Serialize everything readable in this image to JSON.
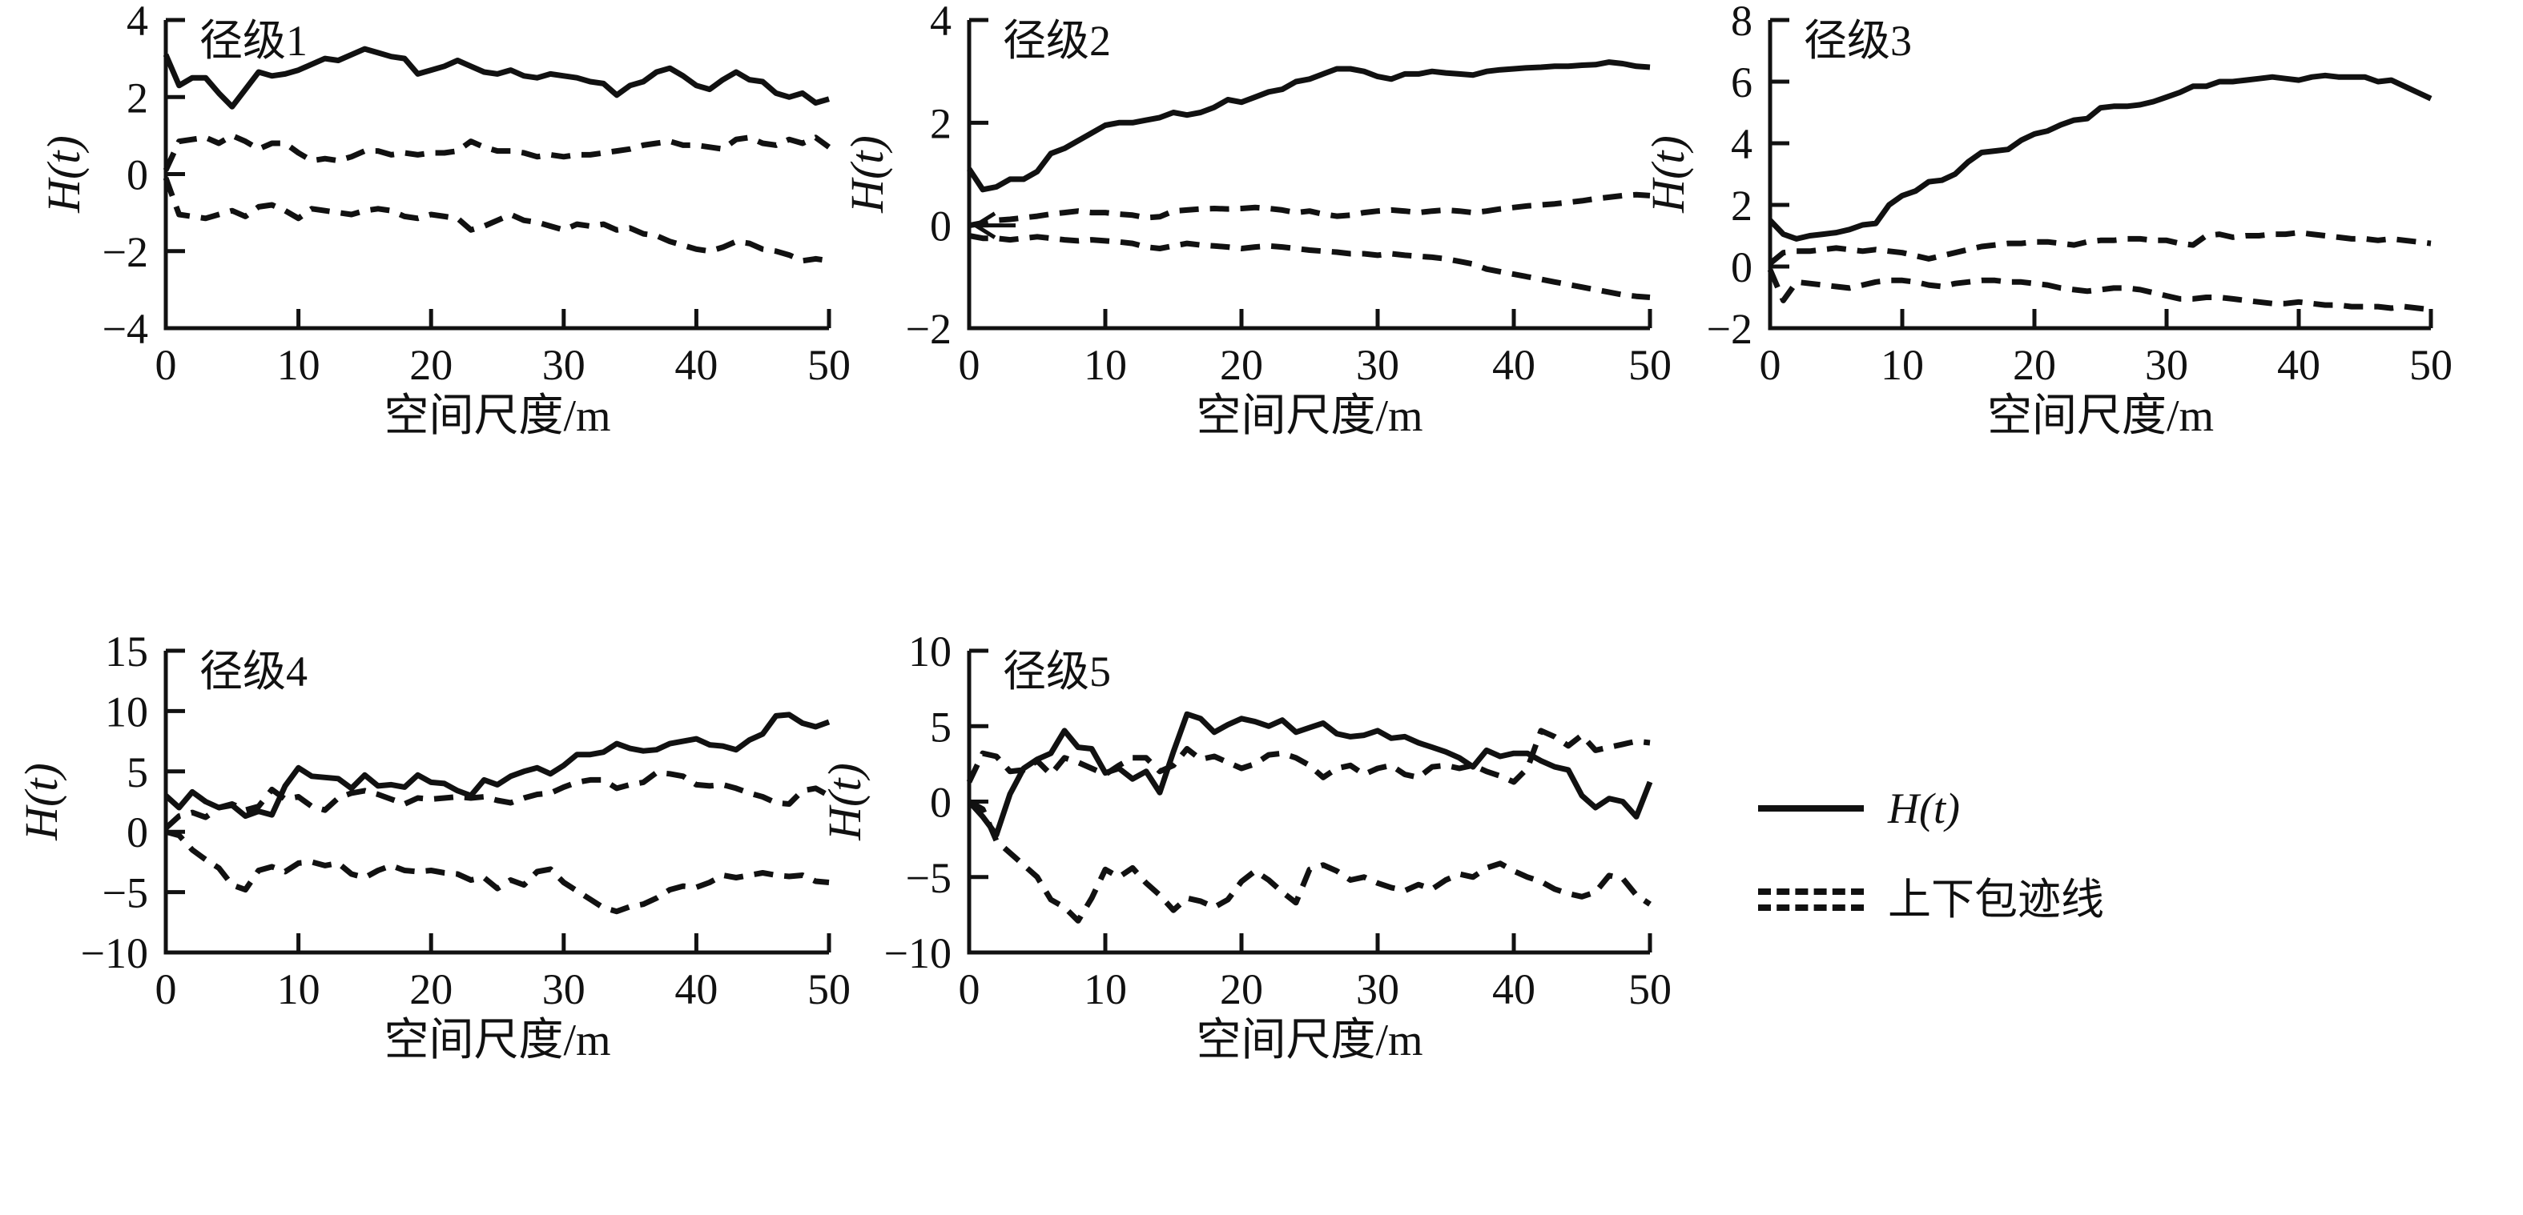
{
  "colors": {
    "line": "#111111",
    "text": "#111111",
    "background": "#ffffff"
  },
  "legend": {
    "items": [
      {
        "marker": "solid-line",
        "label": "H(t)"
      },
      {
        "marker": "double-dashed-line",
        "label": "上下包迹线"
      }
    ]
  },
  "chart_data": [
    {
      "type": "line",
      "title": "径级1",
      "xlabel": "空间尺度/m",
      "ylabel": "H(t)",
      "xlim": [
        0,
        50
      ],
      "ylim": [
        -4,
        4
      ],
      "xticks": [
        0,
        10,
        20,
        30,
        40,
        50
      ],
      "yticks": [
        -4,
        -2,
        0,
        2,
        4
      ],
      "x0": 0,
      "dx": 1,
      "series": [
        {
          "name": "H(t)",
          "style": "solid",
          "values": [
            3.1,
            2.3,
            2.5,
            2.5,
            2.1,
            1.75,
            2.2,
            2.65,
            2.55,
            2.6,
            2.7,
            2.85,
            3.0,
            2.95,
            3.1,
            3.25,
            3.15,
            3.05,
            3.0,
            2.6,
            2.7,
            2.8,
            2.95,
            2.8,
            2.65,
            2.6,
            2.7,
            2.55,
            2.5,
            2.6,
            2.55,
            2.5,
            2.4,
            2.35,
            2.05,
            2.3,
            2.4,
            2.65,
            2.75,
            2.55,
            2.3,
            2.2,
            2.45,
            2.65,
            2.45,
            2.4,
            2.1,
            2.0,
            2.1,
            1.85,
            1.95
          ]
        },
        {
          "name": "上包迹线",
          "style": "dashed",
          "values": [
            0.1,
            0.85,
            0.9,
            0.95,
            0.8,
            1.0,
            0.85,
            0.65,
            0.8,
            0.8,
            0.55,
            0.35,
            0.4,
            0.35,
            0.45,
            0.6,
            0.6,
            0.5,
            0.55,
            0.5,
            0.55,
            0.55,
            0.6,
            0.85,
            0.7,
            0.6,
            0.6,
            0.55,
            0.45,
            0.5,
            0.45,
            0.5,
            0.5,
            0.55,
            0.6,
            0.65,
            0.75,
            0.8,
            0.85,
            0.75,
            0.75,
            0.7,
            0.65,
            0.9,
            0.95,
            0.8,
            0.75,
            0.9,
            0.8,
            0.95,
            0.7
          ]
        },
        {
          "name": "下包迹线",
          "style": "dashed",
          "values": [
            -0.1,
            -1.05,
            -1.1,
            -1.15,
            -1.05,
            -0.95,
            -1.1,
            -0.85,
            -0.8,
            -0.95,
            -1.15,
            -0.9,
            -0.95,
            -1.0,
            -1.05,
            -0.95,
            -0.9,
            -0.95,
            -1.1,
            -1.15,
            -1.05,
            -1.1,
            -1.15,
            -1.45,
            -1.35,
            -1.2,
            -1.05,
            -1.2,
            -1.25,
            -1.35,
            -1.45,
            -1.3,
            -1.35,
            -1.3,
            -1.45,
            -1.4,
            -1.55,
            -1.6,
            -1.75,
            -1.85,
            -1.95,
            -2.0,
            -1.9,
            -1.75,
            -1.8,
            -1.95,
            -2.0,
            -2.1,
            -2.25,
            -2.2,
            -2.25
          ]
        }
      ]
    },
    {
      "type": "line",
      "title": "径级2",
      "xlabel": "空间尺度/m",
      "ylabel": "H(t)",
      "xlim": [
        0,
        50
      ],
      "ylim": [
        -2,
        4
      ],
      "xticks": [
        0,
        10,
        20,
        30,
        40,
        50
      ],
      "yticks": [
        -2,
        0,
        2,
        4
      ],
      "x0": 0,
      "dx": 1,
      "annotations": [
        {
          "type": "arrow-left",
          "x": 0,
          "y": 0
        }
      ],
      "series": [
        {
          "name": "H(t)",
          "style": "solid",
          "values": [
            1.1,
            0.7,
            0.75,
            0.9,
            0.9,
            1.05,
            1.4,
            1.5,
            1.65,
            1.8,
            1.95,
            2.0,
            2.0,
            2.05,
            2.1,
            2.2,
            2.15,
            2.2,
            2.3,
            2.45,
            2.4,
            2.5,
            2.6,
            2.65,
            2.8,
            2.85,
            2.95,
            3.05,
            3.05,
            3.0,
            2.9,
            2.85,
            2.95,
            2.95,
            3.0,
            2.97,
            2.95,
            2.93,
            3.0,
            3.03,
            3.05,
            3.07,
            3.08,
            3.1,
            3.1,
            3.12,
            3.13,
            3.18,
            3.15,
            3.1,
            3.08
          ]
        },
        {
          "name": "上包迹线",
          "style": "dashed",
          "values": [
            0.0,
            0.05,
            0.1,
            0.12,
            0.15,
            0.18,
            0.22,
            0.25,
            0.28,
            0.25,
            0.25,
            0.22,
            0.2,
            0.15,
            0.17,
            0.28,
            0.3,
            0.32,
            0.33,
            0.32,
            0.33,
            0.35,
            0.33,
            0.3,
            0.25,
            0.28,
            0.22,
            0.18,
            0.2,
            0.25,
            0.28,
            0.3,
            0.28,
            0.25,
            0.28,
            0.3,
            0.28,
            0.25,
            0.28,
            0.32,
            0.35,
            0.38,
            0.4,
            0.42,
            0.45,
            0.48,
            0.52,
            0.55,
            0.58,
            0.6,
            0.58
          ]
        },
        {
          "name": "下包迹线",
          "style": "dashed",
          "values": [
            -0.2,
            -0.25,
            -0.25,
            -0.28,
            -0.25,
            -0.22,
            -0.25,
            -0.28,
            -0.3,
            -0.28,
            -0.3,
            -0.32,
            -0.35,
            -0.42,
            -0.45,
            -0.4,
            -0.35,
            -0.38,
            -0.4,
            -0.42,
            -0.45,
            -0.42,
            -0.4,
            -0.42,
            -0.45,
            -0.48,
            -0.5,
            -0.52,
            -0.55,
            -0.55,
            -0.58,
            -0.55,
            -0.58,
            -0.6,
            -0.62,
            -0.65,
            -0.7,
            -0.75,
            -0.85,
            -0.9,
            -0.95,
            -1.0,
            -1.05,
            -1.1,
            -1.15,
            -1.2,
            -1.25,
            -1.3,
            -1.35,
            -1.38,
            -1.4
          ]
        }
      ]
    },
    {
      "type": "line",
      "title": "径级3",
      "xlabel": "空间尺度/m",
      "ylabel": "H(t)",
      "xlim": [
        0,
        50
      ],
      "ylim": [
        -2,
        8
      ],
      "xticks": [
        0,
        10,
        20,
        30,
        40,
        50
      ],
      "yticks": [
        -2,
        0,
        2,
        4,
        6,
        8
      ],
      "x0": 0,
      "dx": 1,
      "series": [
        {
          "name": "H(t)",
          "style": "solid",
          "values": [
            1.5,
            1.05,
            0.9,
            1.0,
            1.05,
            1.1,
            1.2,
            1.35,
            1.4,
            2.0,
            2.3,
            2.45,
            2.75,
            2.8,
            3.0,
            3.4,
            3.7,
            3.75,
            3.8,
            4.1,
            4.3,
            4.4,
            4.6,
            4.75,
            4.8,
            5.15,
            5.2,
            5.2,
            5.25,
            5.35,
            5.5,
            5.65,
            5.85,
            5.85,
            6.0,
            6.0,
            6.05,
            6.1,
            6.15,
            6.1,
            6.05,
            6.15,
            6.2,
            6.15,
            6.15,
            6.15,
            6.0,
            6.05,
            5.85,
            5.65,
            5.45
          ]
        },
        {
          "name": "上包迹线",
          "style": "dashed",
          "values": [
            0.1,
            0.45,
            0.5,
            0.5,
            0.55,
            0.6,
            0.55,
            0.5,
            0.55,
            0.5,
            0.45,
            0.35,
            0.25,
            0.35,
            0.45,
            0.55,
            0.65,
            0.7,
            0.75,
            0.75,
            0.8,
            0.8,
            0.75,
            0.7,
            0.8,
            0.85,
            0.85,
            0.9,
            0.9,
            0.85,
            0.85,
            0.75,
            0.7,
            1.0,
            1.05,
            0.95,
            1.0,
            1.0,
            1.05,
            1.05,
            1.1,
            1.05,
            1.0,
            0.95,
            0.9,
            0.9,
            0.85,
            0.9,
            0.85,
            0.8,
            0.75
          ]
        },
        {
          "name": "下包迹线",
          "style": "dashed",
          "values": [
            -0.1,
            -1.1,
            -0.5,
            -0.55,
            -0.6,
            -0.65,
            -0.7,
            -0.6,
            -0.5,
            -0.45,
            -0.45,
            -0.5,
            -0.6,
            -0.65,
            -0.55,
            -0.5,
            -0.45,
            -0.45,
            -0.5,
            -0.5,
            -0.55,
            -0.6,
            -0.7,
            -0.75,
            -0.8,
            -0.75,
            -0.7,
            -0.7,
            -0.75,
            -0.85,
            -0.95,
            -1.05,
            -1.05,
            -1.0,
            -1.0,
            -1.05,
            -1.1,
            -1.15,
            -1.2,
            -1.2,
            -1.15,
            -1.2,
            -1.25,
            -1.25,
            -1.3,
            -1.3,
            -1.3,
            -1.35,
            -1.3,
            -1.35,
            -1.4
          ]
        }
      ]
    },
    {
      "type": "line",
      "title": "径级4",
      "xlabel": "空间尺度/m",
      "ylabel": "H(t)",
      "xlim": [
        0,
        50
      ],
      "ylim": [
        -10,
        15
      ],
      "xticks": [
        0,
        10,
        20,
        30,
        40,
        50
      ],
      "yticks": [
        -10,
        -5,
        0,
        5,
        10,
        15
      ],
      "x0": 0,
      "dx": 1,
      "series": [
        {
          "name": "H(t)",
          "style": "solid",
          "values": [
            3.0,
            2.0,
            3.3,
            2.5,
            2.0,
            2.2,
            1.3,
            1.7,
            1.4,
            3.8,
            5.3,
            4.6,
            4.5,
            4.4,
            3.6,
            4.7,
            3.8,
            3.9,
            3.7,
            4.7,
            4.1,
            4.0,
            3.4,
            3.0,
            4.3,
            3.9,
            4.6,
            5.0,
            5.3,
            4.8,
            5.5,
            6.4,
            6.4,
            6.6,
            7.3,
            6.9,
            6.7,
            6.8,
            7.3,
            7.5,
            7.7,
            7.2,
            7.1,
            6.8,
            7.6,
            8.1,
            9.6,
            9.7,
            9.0,
            8.7,
            9.1
          ]
        },
        {
          "name": "上包迹线",
          "style": "dashed",
          "values": [
            0.3,
            1.3,
            1.6,
            1.2,
            2.0,
            2.3,
            1.8,
            2.1,
            3.5,
            2.7,
            2.9,
            2.1,
            1.8,
            2.8,
            3.2,
            3.4,
            3.1,
            2.7,
            2.3,
            2.8,
            2.7,
            2.8,
            2.9,
            2.8,
            2.9,
            2.6,
            2.4,
            2.8,
            3.1,
            3.2,
            3.7,
            4.1,
            4.3,
            4.3,
            3.6,
            3.9,
            4.1,
            4.9,
            4.8,
            4.6,
            3.9,
            3.8,
            3.9,
            3.6,
            3.2,
            2.9,
            2.4,
            2.3,
            3.4,
            3.6,
            3.0
          ]
        },
        {
          "name": "下包迹线",
          "style": "dashed",
          "values": [
            0.0,
            -0.3,
            -1.5,
            -2.3,
            -3.0,
            -4.4,
            -4.8,
            -3.2,
            -2.9,
            -3.3,
            -2.6,
            -2.5,
            -2.8,
            -2.6,
            -3.5,
            -3.8,
            -3.2,
            -2.8,
            -3.2,
            -3.3,
            -3.2,
            -3.4,
            -3.5,
            -4.0,
            -3.8,
            -4.7,
            -4.0,
            -4.4,
            -3.3,
            -3.1,
            -4.2,
            -4.9,
            -5.6,
            -6.3,
            -6.6,
            -6.2,
            -6.0,
            -5.5,
            -4.8,
            -4.5,
            -4.6,
            -4.2,
            -3.6,
            -3.8,
            -3.6,
            -3.4,
            -3.6,
            -3.7,
            -3.6,
            -4.1,
            -4.2
          ]
        }
      ]
    },
    {
      "type": "line",
      "title": "径级5",
      "xlabel": "空间尺度/m",
      "ylabel": "H(t)",
      "xlim": [
        0,
        50
      ],
      "ylim": [
        -10,
        10
      ],
      "xticks": [
        0,
        10,
        20,
        30,
        40,
        50
      ],
      "yticks": [
        -10,
        -5,
        0,
        5,
        10
      ],
      "x0": 0,
      "dx": 1,
      "series": [
        {
          "name": "H(t)",
          "style": "solid",
          "values": [
            0.0,
            -1.0,
            -2.2,
            0.5,
            2.2,
            2.8,
            3.2,
            4.7,
            3.6,
            3.5,
            1.9,
            2.2,
            1.5,
            2.0,
            0.6,
            3.3,
            5.8,
            5.5,
            4.6,
            5.1,
            5.5,
            5.3,
            5.0,
            5.4,
            4.6,
            4.9,
            5.2,
            4.5,
            4.3,
            4.4,
            4.7,
            4.2,
            4.3,
            3.9,
            3.6,
            3.3,
            2.9,
            2.3,
            3.4,
            3.0,
            3.2,
            3.2,
            2.7,
            2.3,
            2.1,
            0.4,
            -0.4,
            0.2,
            0.0,
            -1.0,
            1.3
          ]
        },
        {
          "name": "上包迹线",
          "style": "dashed",
          "values": [
            1.3,
            3.2,
            3.0,
            2.0,
            2.1,
            2.7,
            1.8,
            2.9,
            2.6,
            2.2,
            1.8,
            2.4,
            2.9,
            2.9,
            2.0,
            2.4,
            3.5,
            2.8,
            3.0,
            2.6,
            2.2,
            2.5,
            3.1,
            3.2,
            2.9,
            2.4,
            1.6,
            2.2,
            2.4,
            1.8,
            2.2,
            2.4,
            1.8,
            1.6,
            2.3,
            2.4,
            2.2,
            2.4,
            2.0,
            1.7,
            1.3,
            2.2,
            4.7,
            4.3,
            3.7,
            4.4,
            3.4,
            3.6,
            3.8,
            4.0,
            3.9
          ]
        },
        {
          "name": "下包迹线",
          "style": "dashed",
          "values": [
            0.0,
            -0.5,
            -2.6,
            -3.4,
            -4.2,
            -5.0,
            -6.5,
            -7.0,
            -7.9,
            -6.4,
            -4.5,
            -5.0,
            -4.4,
            -5.4,
            -6.2,
            -7.2,
            -6.4,
            -6.6,
            -7.0,
            -6.5,
            -5.3,
            -4.6,
            -5.2,
            -6.0,
            -6.7,
            -4.5,
            -4.2,
            -4.6,
            -5.2,
            -5.0,
            -5.4,
            -5.7,
            -5.9,
            -5.5,
            -5.8,
            -5.2,
            -4.8,
            -5.0,
            -4.4,
            -4.1,
            -4.6,
            -5.0,
            -5.3,
            -5.8,
            -6.1,
            -6.3,
            -6.0,
            -4.9,
            -5.1,
            -6.2,
            -6.8
          ]
        }
      ]
    }
  ]
}
